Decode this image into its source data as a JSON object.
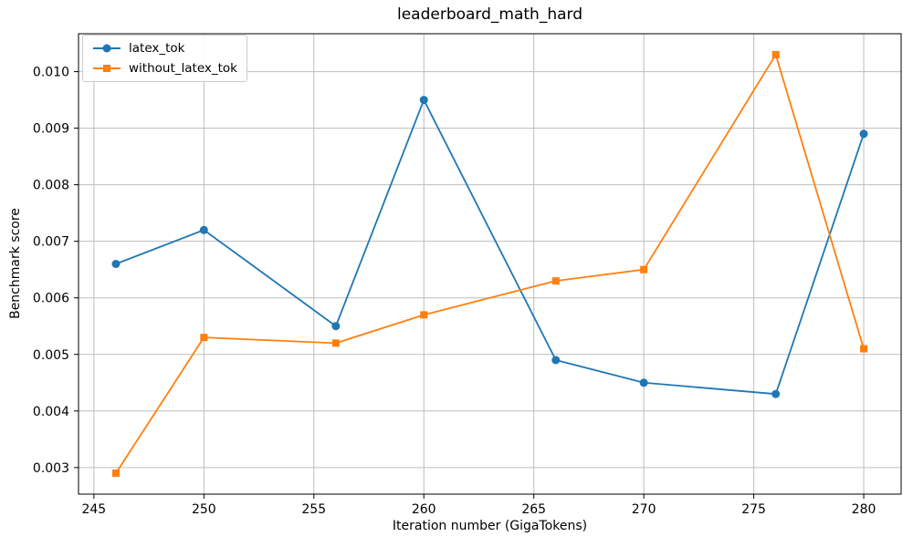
{
  "chart_data": {
    "type": "line",
    "title": "leaderboard_math_hard",
    "xlabel": "Iteration number (GigaTokens)",
    "ylabel": "Benchmark score",
    "x": [
      246,
      250,
      256,
      260,
      266,
      270,
      276,
      280
    ],
    "series": [
      {
        "name": "latex_tok",
        "color": "#1f77b4",
        "marker": "circle",
        "values": [
          0.0066,
          0.0072,
          0.0055,
          0.0095,
          0.0049,
          0.0045,
          0.0043,
          0.0089
        ]
      },
      {
        "name": "without_latex_tok",
        "color": "#ff7f0e",
        "marker": "square",
        "values": [
          0.0029,
          0.0053,
          0.0052,
          0.0057,
          0.0063,
          0.0065,
          0.0103,
          0.0051
        ]
      }
    ],
    "xlim": [
      244.3,
      281.7
    ],
    "ylim": [
      0.00253,
      0.01067
    ],
    "xticks": [
      245,
      250,
      255,
      260,
      265,
      270,
      275,
      280
    ],
    "xtick_labels": [
      "245",
      "250",
      "255",
      "260",
      "265",
      "270",
      "275",
      "280"
    ],
    "yticks": [
      0.003,
      0.004,
      0.005,
      0.006,
      0.007,
      0.008,
      0.009,
      0.01
    ],
    "ytick_labels": [
      "0.003",
      "0.004",
      "0.005",
      "0.006",
      "0.007",
      "0.008",
      "0.009",
      "0.010"
    ],
    "grid": true,
    "grid_color": "#bdbdbd",
    "spine_color": "#000000",
    "background_color": "#ffffff",
    "legend_position": "upper-left",
    "legend_border_color": "#cccccc"
  }
}
